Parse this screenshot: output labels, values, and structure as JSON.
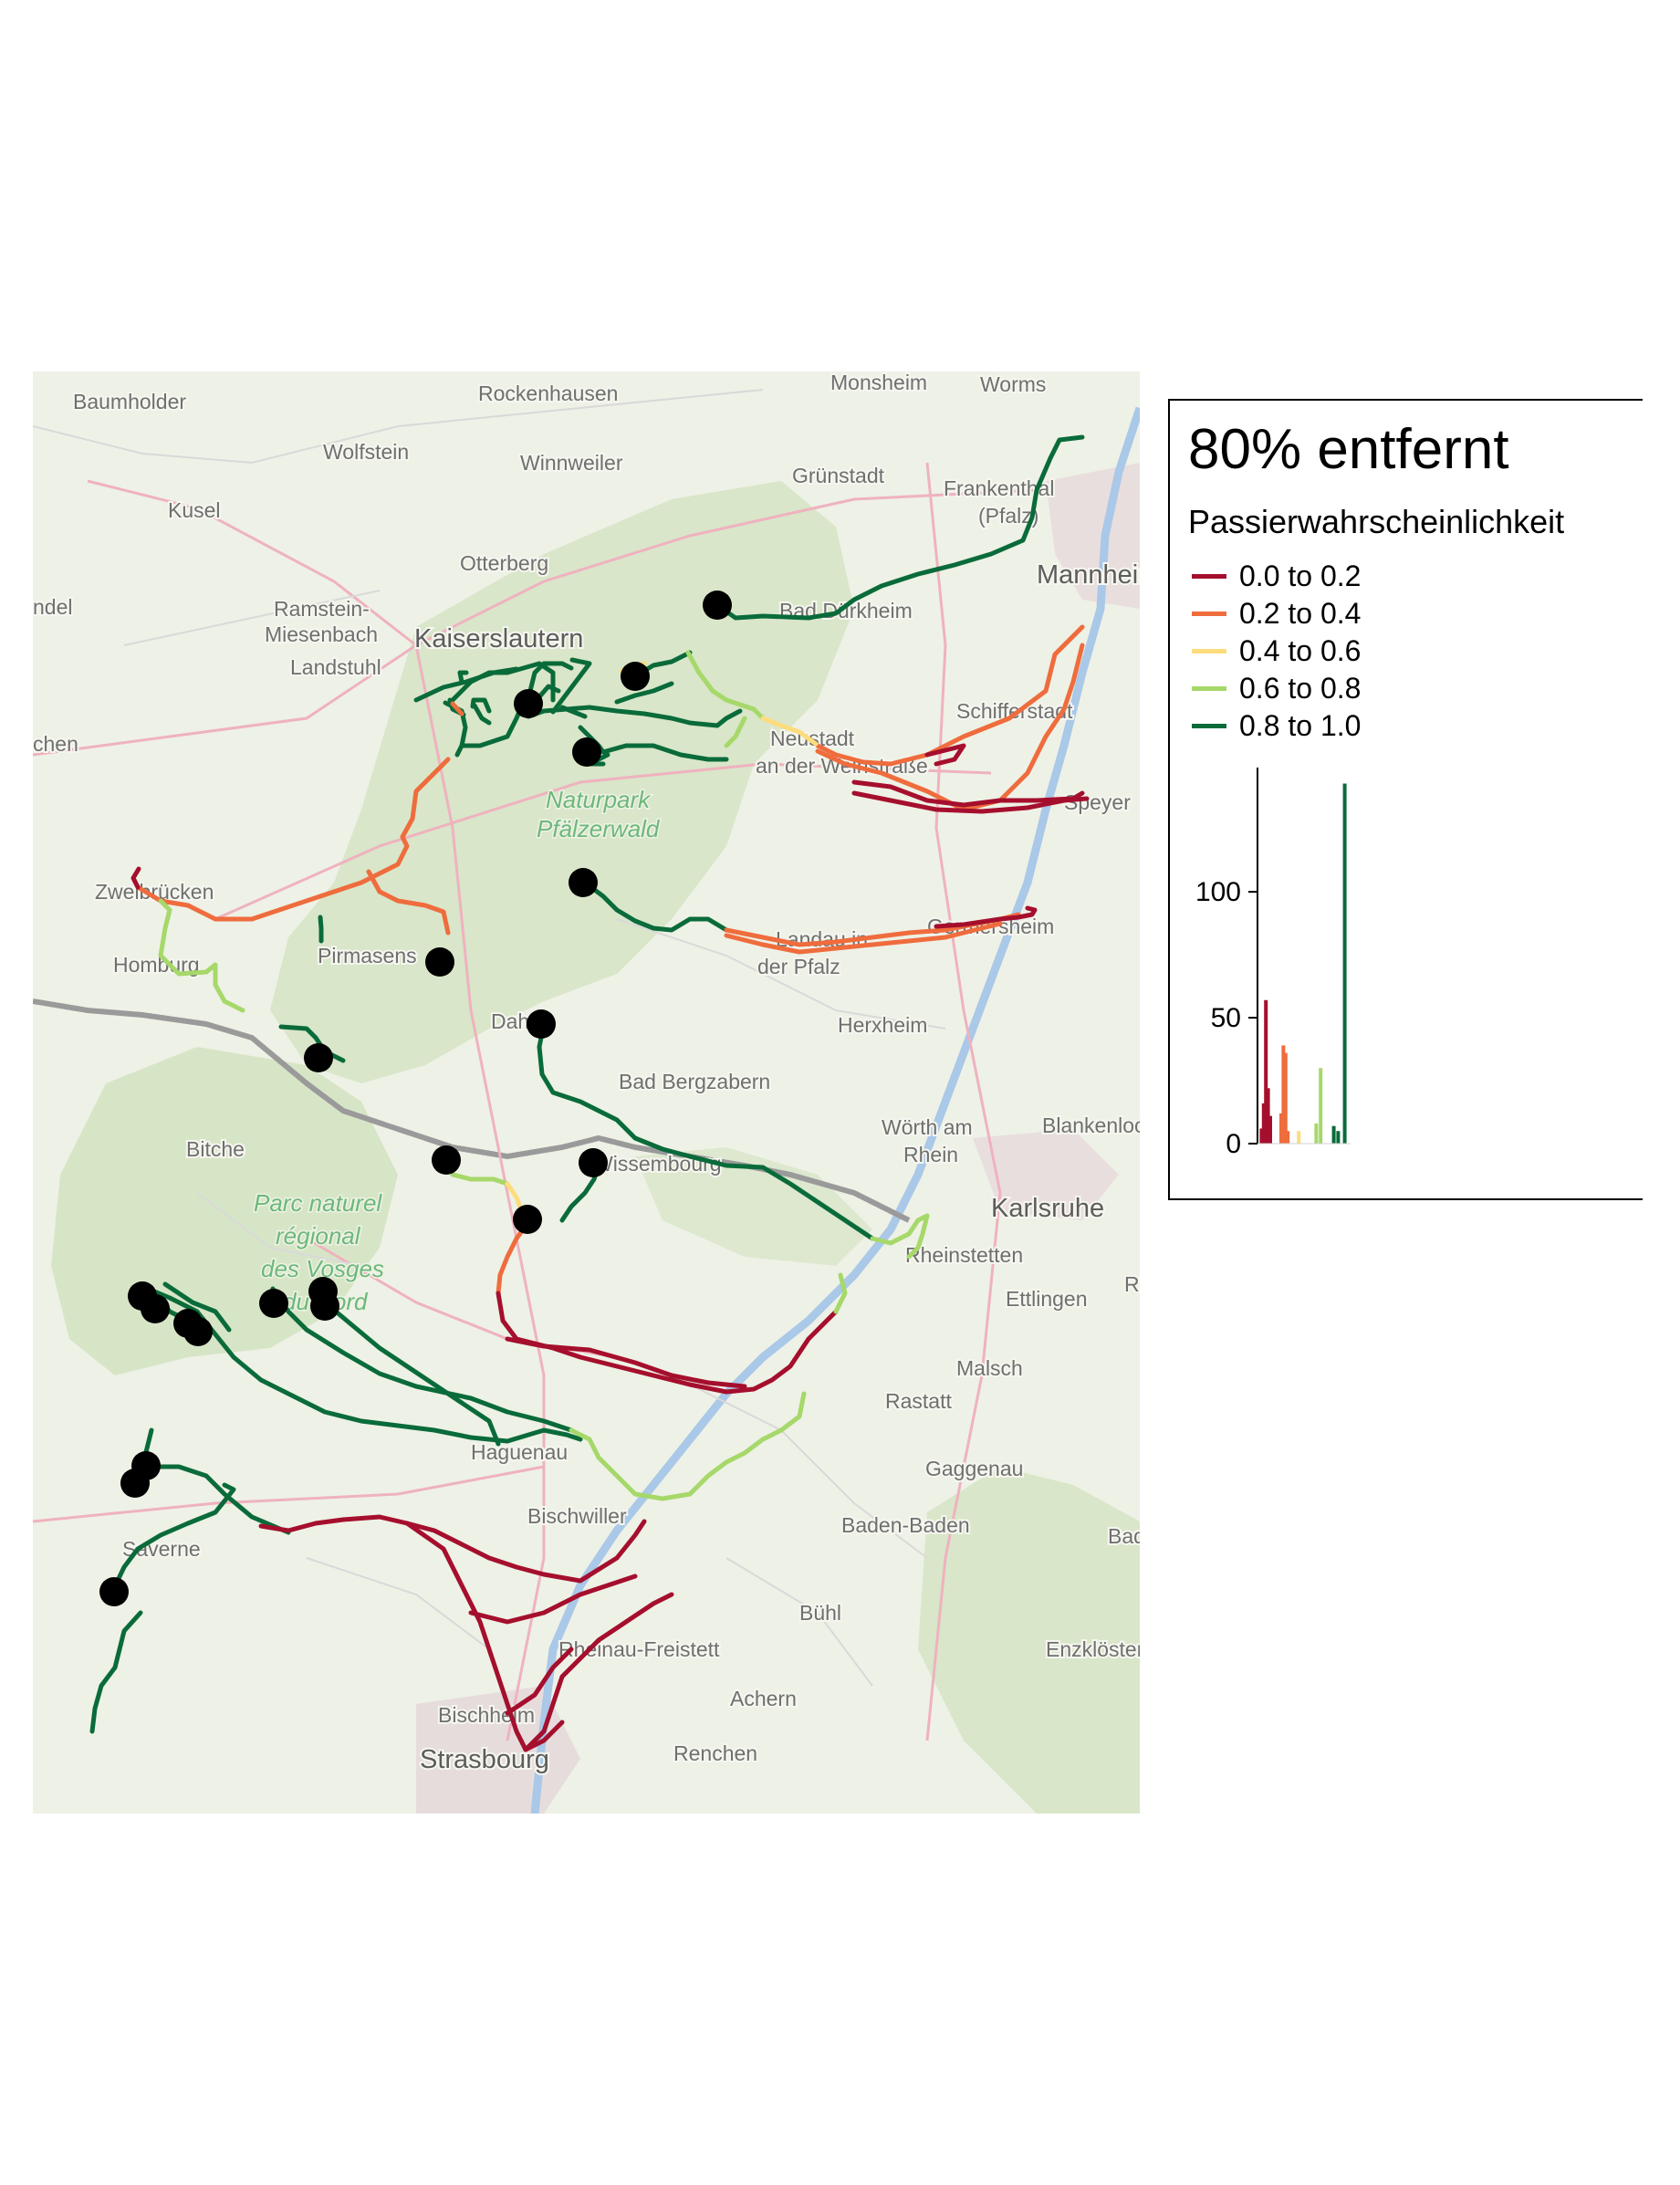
{
  "legend": {
    "title": "80% entfernt",
    "subtitle": "Passierwahrscheinlichkeit",
    "items": [
      {
        "label": "0.0 to 0.2",
        "color": "#a50f2d"
      },
      {
        "label": "0.2 to 0.4",
        "color": "#ef6c3d"
      },
      {
        "label": "0.4 to 0.6",
        "color": "#fddc7e"
      },
      {
        "label": "0.6 to 0.8",
        "color": "#a6d86a"
      },
      {
        "label": "0.8 to 1.0",
        "color": "#0a6b3a"
      }
    ]
  },
  "chart_data": {
    "type": "bar",
    "ylim": [
      0,
      145
    ],
    "yticks": [
      0,
      50,
      100
    ],
    "bins": [
      {
        "x": 0.025,
        "value": 6,
        "color": "#a50f2d"
      },
      {
        "x": 0.05,
        "value": 16,
        "color": "#a50f2d"
      },
      {
        "x": 0.075,
        "value": 57,
        "color": "#a50f2d"
      },
      {
        "x": 0.1,
        "value": 22,
        "color": "#a50f2d"
      },
      {
        "x": 0.125,
        "value": 11,
        "color": "#a50f2d"
      },
      {
        "x": 0.25,
        "value": 12,
        "color": "#ef6c3d"
      },
      {
        "x": 0.275,
        "value": 39,
        "color": "#ef6c3d"
      },
      {
        "x": 0.3,
        "value": 36,
        "color": "#ef6c3d"
      },
      {
        "x": 0.325,
        "value": 5,
        "color": "#ef6c3d"
      },
      {
        "x": 0.45,
        "value": 5,
        "color": "#fddc7e"
      },
      {
        "x": 0.65,
        "value": 8,
        "color": "#a6d86a"
      },
      {
        "x": 0.7,
        "value": 30,
        "color": "#a6d86a"
      },
      {
        "x": 0.85,
        "value": 7,
        "color": "#0a6b3a"
      },
      {
        "x": 0.9,
        "value": 5,
        "color": "#0a6b3a"
      },
      {
        "x": 0.975,
        "value": 143,
        "color": "#0a6b3a"
      }
    ]
  },
  "map": {
    "towns": [
      "Baumholder",
      "Rockenhausen",
      "Monsheim",
      "Worms",
      "Wolfstein",
      "Winnweiler",
      "Grünstadt",
      "Frankenthal",
      "(Pfalz)",
      "Kusel",
      "Otterberg",
      "Mannheim",
      "Ramstein-",
      "Miesenbach",
      "Kaiserslautern",
      "Bad Dürkheim",
      "Landstuhl",
      "Schifferstadt",
      "Neustadt",
      "an der Weinstraße",
      "Speyer",
      "Zweibrücken",
      "Homburg",
      "Pirmasens",
      "Landau in",
      "der Pfalz",
      "Germersheim",
      "Dahn",
      "Herxheim",
      "Bad Bergzabern",
      "Bitche",
      "Wörth am",
      "Rhein",
      "Blankenloch",
      "Wissembourg",
      "Karlsruhe",
      "Rheinstetten",
      "Ettlingen",
      "Malsch",
      "Rastatt",
      "Haguenau",
      "Gaggenau",
      "Bischwiller",
      "Baden-Baden",
      "Saverne",
      "Bühl",
      "Rheinau-Freistett",
      "Enzklösterle",
      "Achern",
      "Bischheim",
      "Renchen",
      "Strasbourg",
      "ndel",
      "chen",
      "Bad",
      "Rh"
    ],
    "parks": [
      "Naturpark",
      "Pfälzerwald",
      "Parc naturel",
      "régional",
      "des Vosges",
      "du Nord"
    ]
  }
}
